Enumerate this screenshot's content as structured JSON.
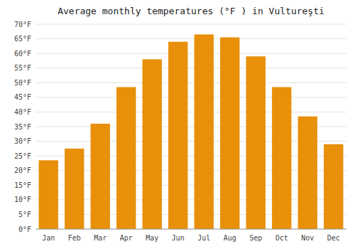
{
  "chart_data": {
    "type": "bar",
    "title": "Average monthly temperatures (°F ) in Vultureşti",
    "categories": [
      "Jan",
      "Feb",
      "Mar",
      "Apr",
      "May",
      "Jun",
      "Jul",
      "Aug",
      "Sep",
      "Oct",
      "Nov",
      "Dec"
    ],
    "values": [
      23.5,
      27.5,
      36,
      48.5,
      58,
      64,
      66.5,
      65.5,
      59,
      48.5,
      38.5,
      29
    ],
    "color": "#E8900A",
    "ylim": [
      0,
      70
    ],
    "yticks": [
      {
        "value": 0,
        "label": "0°F"
      },
      {
        "value": 5,
        "label": "5°F"
      },
      {
        "value": 10,
        "label": "10°F"
      },
      {
        "value": 15,
        "label": "15°F"
      },
      {
        "value": 20,
        "label": "20°F"
      },
      {
        "value": 25,
        "label": "25°F"
      },
      {
        "value": 30,
        "label": "30°F"
      },
      {
        "value": 35,
        "label": "35°F"
      },
      {
        "value": 40,
        "label": "40°F"
      },
      {
        "value": 45,
        "label": "45°F"
      },
      {
        "value": 50,
        "label": "50°F"
      },
      {
        "value": 55,
        "label": "55°F"
      },
      {
        "value": 60,
        "label": "60°F"
      },
      {
        "value": 65,
        "label": "65°F"
      },
      {
        "value": 70,
        "label": "70°F"
      }
    ],
    "grid": true
  }
}
